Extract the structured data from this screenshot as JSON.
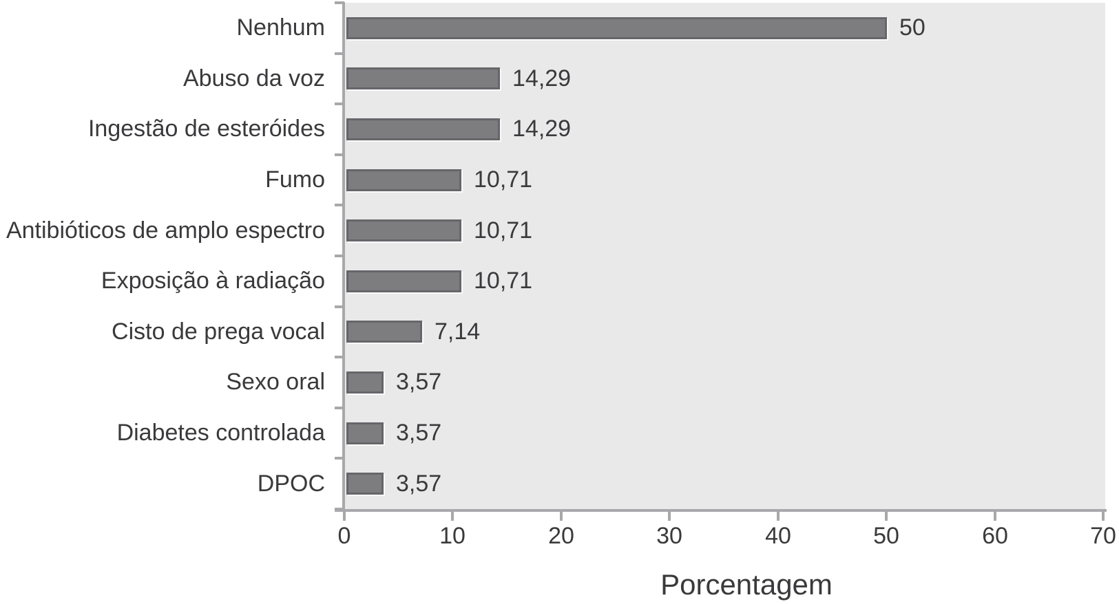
{
  "chart_data": {
    "type": "bar",
    "orientation": "horizontal",
    "title": "",
    "xlabel": "Porcentagem",
    "ylabel": "",
    "categories": [
      "Nenhum",
      "Abuso da voz",
      "Ingestão de esteróides",
      "Fumo",
      "Antibióticos de amplo espectro",
      "Exposição à radiação",
      "Cisto de prega vocal",
      "Sexo oral",
      "Diabetes controlada",
      "DPOC"
    ],
    "values": [
      50,
      14.29,
      14.29,
      10.71,
      10.71,
      10.71,
      7.14,
      3.57,
      3.57,
      3.57
    ],
    "value_labels": [
      "50",
      "14,29",
      "14,29",
      "10,71",
      "10,71",
      "10,71",
      "7,14",
      "3,57",
      "3,57",
      "3,57"
    ],
    "xlim": [
      0,
      70
    ],
    "xticks": [
      0,
      10,
      20,
      30,
      40,
      50,
      60,
      70
    ],
    "xtick_labels": [
      "0",
      "10",
      "20",
      "30",
      "40",
      "50",
      "60",
      "70"
    ],
    "grid": "off",
    "legend": "none",
    "colors": {
      "bar_fill": "#7d7d80",
      "bar_border": "#66666a",
      "bar_bevel": "#fafafa",
      "plot_background": "#e9e9ea",
      "axis_line": "#a8a8ab",
      "text": "#3a3a3c",
      "figure_background": "#ffffff"
    }
  }
}
